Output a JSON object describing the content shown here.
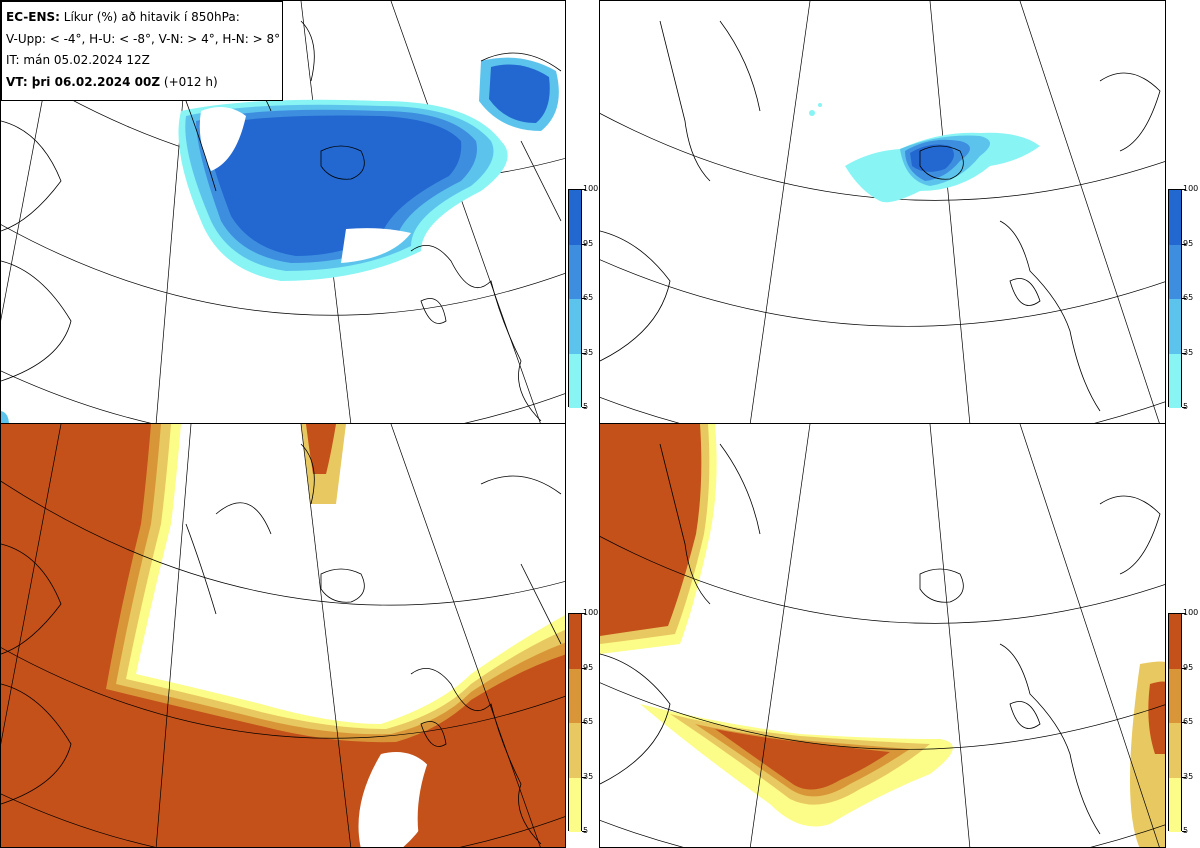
{
  "info": {
    "title_bold": "EC-ENS:",
    "title_rest": " Líkur (%) að hitavik í 850hPa:",
    "thresholds": "V-Upp: < -4°, H-U: < -8°, V-N: > 4°, H-N: > 8°",
    "it": "IT: mán 05.02.2024 12Z",
    "vt_bold": "VT: þri 06.02.2024 00Z",
    "vt_rest": " (+012 h)"
  },
  "colorbar": {
    "ticks": [
      "100",
      "95",
      "65",
      "35",
      "5"
    ],
    "cold_colors": [
      "#2268d0",
      "#3e8ee0",
      "#5cc4ec",
      "#88f4f4"
    ],
    "warm_colors": [
      "#c4501a",
      "#d89638",
      "#e8c860",
      "#fcfc88"
    ]
  },
  "panels": [
    {
      "id": "upper-left",
      "variable": "V-Upp",
      "theme": "cold"
    },
    {
      "id": "upper-right",
      "variable": "H-U",
      "theme": "cold"
    },
    {
      "id": "lower-left",
      "variable": "V-N",
      "theme": "warm"
    },
    {
      "id": "lower-right",
      "variable": "H-N",
      "theme": "warm"
    }
  ],
  "icons": [
    "map-projection",
    "coastline"
  ]
}
